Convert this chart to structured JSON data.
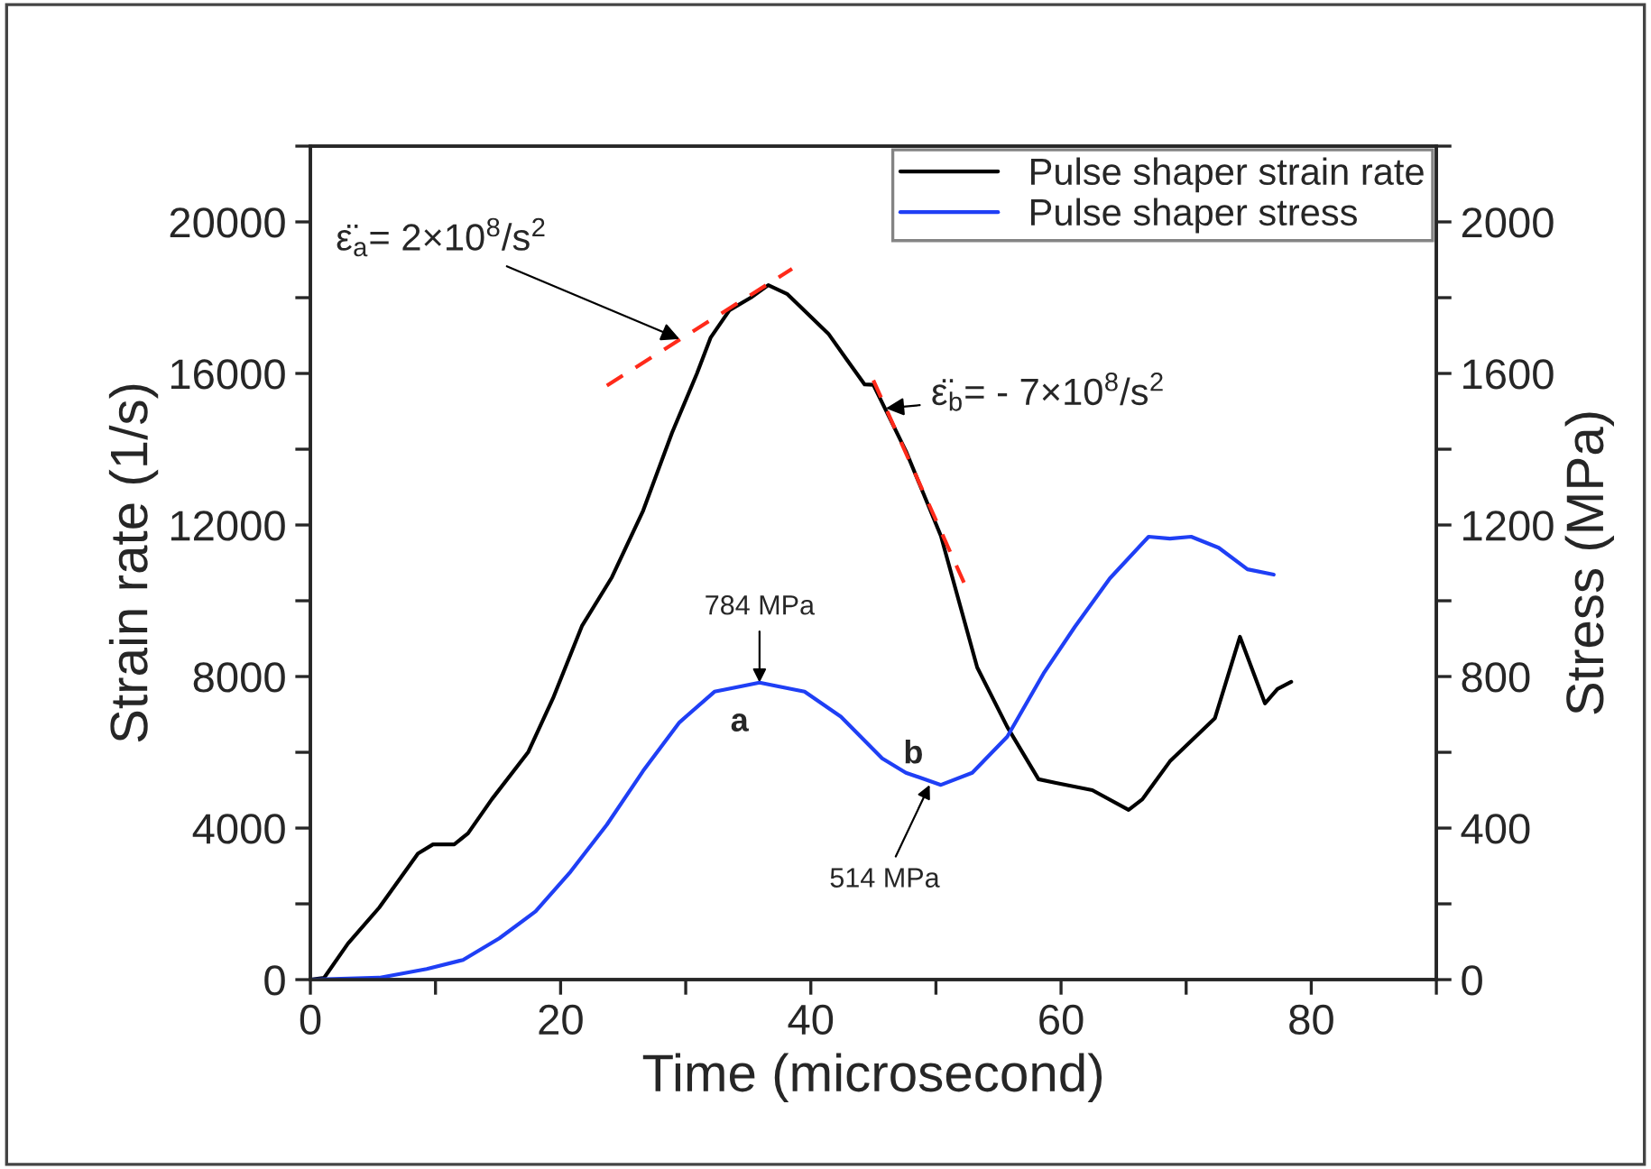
{
  "chart_data": {
    "type": "line",
    "xlabel": "Time (microsecond)",
    "ylabel": "Strain rate (1/s)",
    "y2label": "Stress (MPa)",
    "series": [
      {
        "name": "Pulse shaper strain rate",
        "color": "#000000",
        "x": [
          0,
          1.1,
          3.0,
          5.5,
          8.6,
          9.8,
          11.5,
          12.6,
          14.5,
          17.4,
          19.4,
          21.7,
          24.1,
          26.6,
          28.9,
          30.9,
          32.0,
          33.5,
          35.2,
          36.6,
          38.1,
          41.4,
          42.8,
          44.3,
          45.0,
          47.6,
          50.4,
          53.3,
          55.7,
          58.2,
          59.6,
          62.5,
          65.4,
          66.5,
          68.7,
          72.3,
          74.3,
          76.3,
          77.3,
          78.4
        ],
        "values": [
          0,
          50,
          950,
          1900,
          3330,
          3570,
          3570,
          3860,
          4760,
          6000,
          7430,
          9330,
          10620,
          12380,
          14430,
          16000,
          16950,
          17670,
          18000,
          18330,
          18100,
          17050,
          16400,
          15710,
          15700,
          13950,
          11710,
          8240,
          6670,
          5290,
          5190,
          5000,
          4480,
          4760,
          5760,
          6900,
          9050,
          7290,
          7670,
          7860
        ]
      },
      {
        "name": "Pulse shaper stress",
        "color": "#1f3ff5",
        "axis": "y2",
        "x": [
          0,
          5.5,
          9.3,
          12.2,
          15.1,
          18.0,
          20.8,
          23.7,
          26.6,
          29.5,
          32.3,
          35.9,
          39.5,
          42.4,
          45.7,
          47.6,
          50.4,
          52.9,
          55.7,
          58.6,
          61.1,
          63.9,
          67.0,
          68.7,
          70.4,
          72.6,
          74.9,
          77.0
        ],
        "values": [
          0,
          5,
          28,
          52,
          109,
          180,
          285,
          409,
          551,
          679,
          760,
          784,
          760,
          694,
          584,
          546,
          514,
          546,
          641,
          808,
          931,
          1059,
          1169,
          1164,
          1169,
          1140,
          1083,
          1069
        ]
      },
      {
        "color": "#ff2a1a",
        "line_style": "dashed",
        "x": [
          23.7,
          38.5
        ],
        "values": [
          15680,
          18760
        ]
      },
      {
        "color": "#ff2a1a",
        "line_style": "dashed",
        "x": [
          45.0,
          52.4
        ],
        "values": [
          15820,
          10360
        ]
      }
    ],
    "xlim": [
      0,
      90
    ],
    "xticks": [
      0,
      {
        "value": 10,
        "label": null
      },
      20,
      {
        "value": 30,
        "label": null
      },
      40,
      {
        "value": 50,
        "label": null
      },
      60,
      {
        "value": 70,
        "label": null
      },
      80,
      {
        "value": 90,
        "label": null
      }
    ],
    "ylim": [
      0,
      22000
    ],
    "yticks": [
      0,
      {
        "value": 2000,
        "label": null
      },
      4000,
      {
        "value": 6000,
        "label": null
      },
      8000,
      {
        "value": 10000,
        "label": null
      },
      12000,
      {
        "value": 14000,
        "label": null
      },
      16000,
      {
        "value": 18000,
        "label": null
      },
      20000,
      {
        "value": 22000,
        "label": null
      }
    ],
    "y2lim": [
      0,
      2200
    ],
    "y2ticks": [
      0,
      {
        "value": 200,
        "label": null
      },
      400,
      {
        "value": 600,
        "label": null
      },
      800,
      {
        "value": 1000,
        "label": null
      },
      1200,
      {
        "value": 1400,
        "label": null
      },
      1600,
      {
        "value": 1800,
        "label": null
      },
      2000,
      {
        "value": 2200,
        "label": null
      }
    ],
    "annotations": [
      {
        "text": "ε̈$_{a}$= 2×10$^{8}$/s$^{2}$",
        "x": 29.5,
        "y": 16910
      },
      {
        "text": "ε̈$_{b}$= - 7×10$^{8}$/s$^{2}$",
        "x": 46.0,
        "y": 15080
      },
      {
        "text": "784 MPa",
        "x": 35.9,
        "y": 7840
      },
      {
        "text": "a",
        "x": 35.9,
        "y": 7840
      },
      {
        "text": "b",
        "x": 50.4,
        "y": 5140
      },
      {
        "text": "514 MPa",
        "x": 49.5,
        "y": 5140
      }
    ],
    "legend": "top right",
    "grid": false
  }
}
